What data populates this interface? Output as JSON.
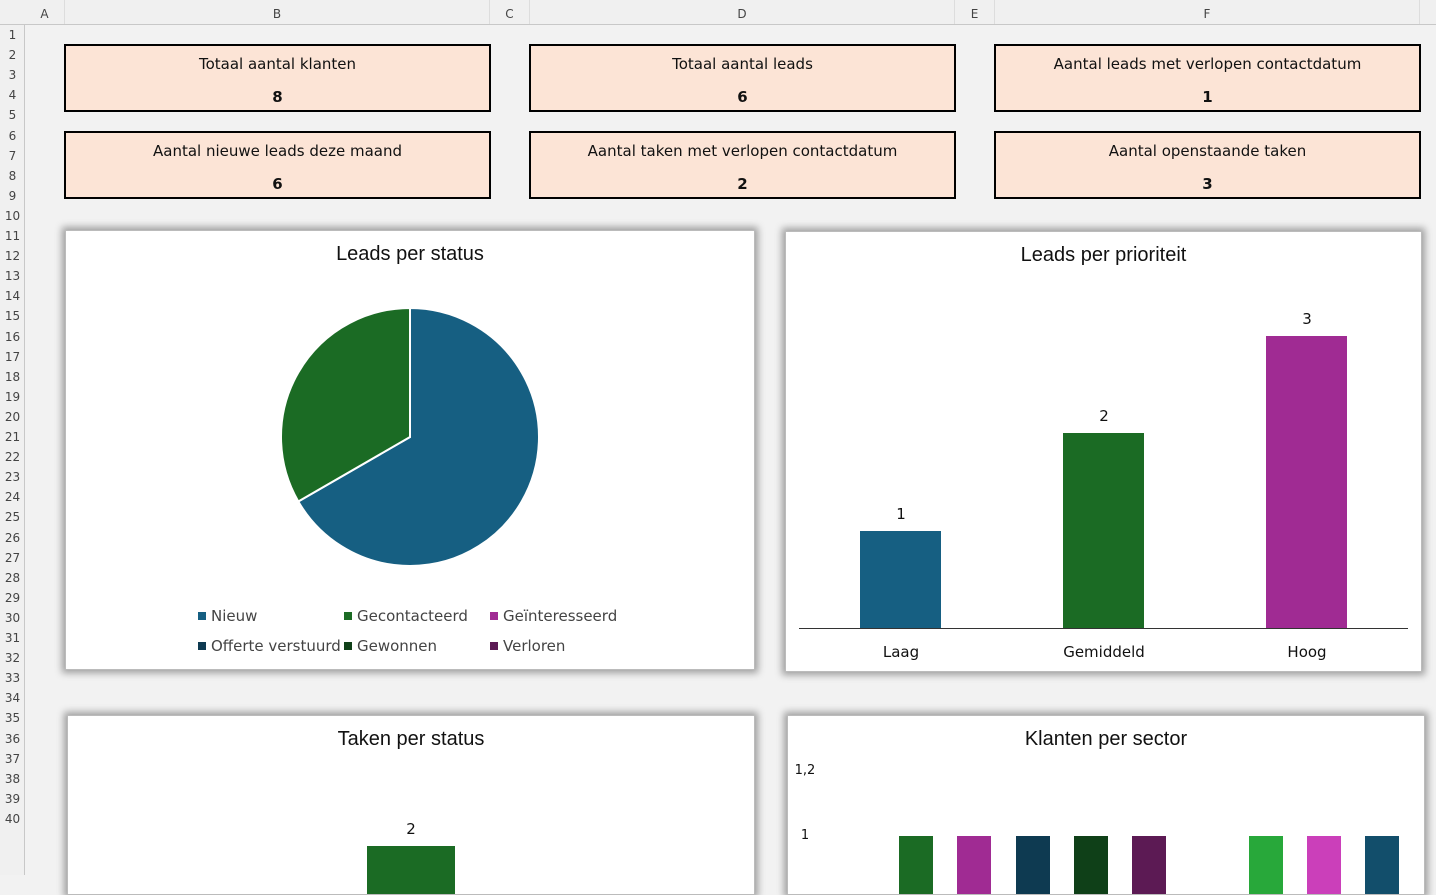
{
  "columns": [
    "A",
    "B",
    "C",
    "D",
    "E",
    "F"
  ],
  "rows": [
    "1",
    "2",
    "3",
    "4",
    "5",
    "6",
    "7",
    "8",
    "9",
    "10",
    "11",
    "12",
    "13",
    "14",
    "15",
    "16",
    "17",
    "18",
    "19",
    "20",
    "21",
    "22",
    "23",
    "24",
    "25",
    "26",
    "27",
    "28",
    "29",
    "30",
    "31",
    "32",
    "33",
    "34",
    "35",
    "36",
    "37",
    "38",
    "39",
    "40"
  ],
  "kpis": [
    {
      "label": "Totaal aantal klanten",
      "value": "8"
    },
    {
      "label": "Totaal aantal leads",
      "value": "6"
    },
    {
      "label": "Aantal leads met verlopen contactdatum",
      "value": "1"
    },
    {
      "label": "Aantal nieuwe leads deze maand",
      "value": "6"
    },
    {
      "label": "Aantal taken met verlopen contactdatum",
      "value": "2"
    },
    {
      "label": "Aantal openstaande taken",
      "value": "3"
    }
  ],
  "chart_data": [
    {
      "type": "pie",
      "title": "Leads per status",
      "legend_position": "bottom",
      "categories": [
        "Nieuw",
        "Gecontacteerd",
        "Geïnteresseerd",
        "Offerte verstuurd",
        "Gewonnen",
        "Verloren"
      ],
      "values": [
        4,
        2,
        0,
        0,
        0,
        0
      ],
      "colors": [
        "#165f82",
        "#1b6b24",
        "#a02b93",
        "#0e3a51",
        "#0f4018",
        "#5c1a54"
      ]
    },
    {
      "type": "bar",
      "title": "Leads per prioriteit",
      "categories": [
        "Laag",
        "Gemiddeld",
        "Hoog"
      ],
      "values": [
        1,
        2,
        3
      ],
      "colors": [
        "#165f82",
        "#1b6b24",
        "#a02b93"
      ],
      "ylim": [
        0,
        3
      ]
    },
    {
      "type": "bar",
      "title": "Taken per status",
      "values": [
        2
      ],
      "colors": [
        "#1b6b24"
      ]
    },
    {
      "type": "bar",
      "title": "Klanten per sector",
      "y_ticks": [
        "1,2",
        "1"
      ],
      "values": [
        1,
        1,
        1,
        1,
        1,
        0,
        1,
        1,
        1
      ],
      "colors": [
        "#1b6b24",
        "#a02b93",
        "#0e3a51",
        "#0f4018",
        "#5c1a54",
        "#ffffff",
        "#28a83a",
        "#cb3fba",
        "#124e6b"
      ]
    }
  ]
}
